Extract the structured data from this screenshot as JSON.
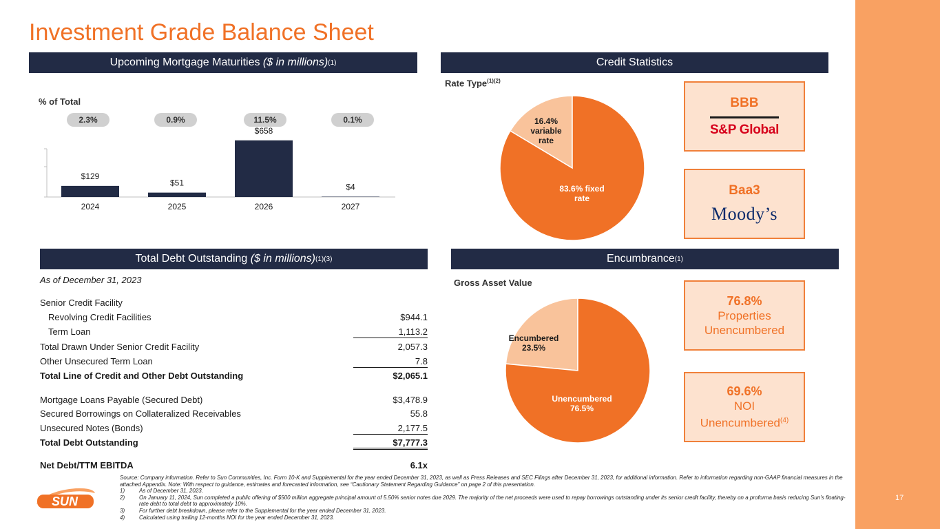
{
  "title": "Investment Grade Balance Sheet",
  "page_number": "17",
  "maturities": {
    "header": "Upcoming Mortgage Maturities ",
    "header_italic": "($ in millions)",
    "header_sup": "(1)",
    "pct_label": "% of Total",
    "pcts": [
      "2.3%",
      "0.9%",
      "11.5%",
      "0.1%"
    ]
  },
  "credit": {
    "header": "Credit Statistics",
    "rate_type_label": "Rate Type",
    "rate_type_sup": "(1)(2)",
    "variable_label": [
      "16.4%",
      "variable",
      "rate"
    ],
    "fixed_label": [
      "83.6% fixed",
      "rate"
    ],
    "sp_rating": "BBB",
    "sp_name": "S&P Global",
    "moodys_rating": "Baa3",
    "moodys_name": "Moody’s",
    "colors": {
      "fixed": "#f07126",
      "variable": "#f9c39b"
    }
  },
  "debt": {
    "header": "Total Debt Outstanding ",
    "header_italic": "($ in millions)",
    "header_sup": "(1)(3)",
    "as_of": "As of December 31, 2023",
    "rows": [
      {
        "label": "Senior Credit Facility",
        "value": ""
      },
      {
        "label": "Revolving Credit Facilities",
        "value": "$944.1"
      },
      {
        "label": "Term Loan",
        "value": "1,113.2"
      },
      {
        "label": "Total Drawn Under Senior Credit Facility",
        "value": "2,057.3"
      },
      {
        "label": "Other Unsecured Term Loan",
        "value": "7.8"
      },
      {
        "label": "Total Line of Credit and Other Debt Outstanding",
        "value": "$2,065.1"
      },
      {
        "label": "Mortgage Loans Payable (Secured Debt)",
        "value": "$3,478.9"
      },
      {
        "label": "Secured Borrowings on Collateralized Receivables",
        "value": "55.8"
      },
      {
        "label": "Unsecured Notes (Bonds)",
        "value": "2,177.5"
      },
      {
        "label": "Total Debt Outstanding",
        "value": "$7,777.3"
      },
      {
        "label": "Net Debt/TTM EBITDA",
        "value": "6.1x"
      }
    ]
  },
  "encumbrance": {
    "header": "Encumbrance",
    "header_sup": "(1)",
    "gav_label": "Gross Asset Value",
    "encumbered_label": [
      "Encumbered",
      "23.5%"
    ],
    "unencumbered_label": [
      "Unencumbered",
      "76.5%"
    ],
    "box1": {
      "big": "76.8%",
      "line1": "Properties",
      "line2": "Unencumbered"
    },
    "box2": {
      "big": "69.6%",
      "line1": "NOI",
      "line2": "Unencumbered",
      "sup": "(4)"
    },
    "colors": {
      "unencumbered": "#f07126",
      "encumbered": "#f9c39b"
    }
  },
  "footnotes": {
    "source": "Source: Company information. Refer to Sun Communities, Inc. Form 10-K and Supplemental for the year ended December 31, 2023, as well as Press Releases and SEC Filings after December 31, 2023, for additional information. Refer to information regarding non-GAAP financial measures in the attached Appendix. Note: With respect to guidance, estimates and forecasted information, see “Cautionary Statement Regarding Guidance” on page 2 of this presentation.",
    "notes": [
      {
        "num": "1)",
        "text": "As of December 31, 2023."
      },
      {
        "num": "2)",
        "text": "On January 11, 2024, Sun completed a public offering of $500 million aggregate principal amount of 5.50% senior notes due 2029. The majority of the net proceeds were used to repay borrowings outstanding under its senior credit facility, thereby on a proforma basis reducing Sun’s floating-rate debt to total debt to approximately 10%."
      },
      {
        "num": "3)",
        "text": "For further debt breakdown, please refer to the Supplemental for the year ended December 31, 2023."
      },
      {
        "num": "4)",
        "text": "Calculated using trailing 12-months NOI for the year ended December 31, 2023."
      }
    ]
  },
  "logo_text": "SUN",
  "chart_data": [
    {
      "type": "bar",
      "title": "Upcoming Mortgage Maturities ($ in millions)",
      "categories": [
        "2024",
        "2025",
        "2026",
        "2027"
      ],
      "values": [
        129,
        51,
        658,
        4
      ],
      "data_labels": [
        "$129",
        "$51",
        "$658",
        "$4"
      ],
      "ylim": [
        0,
        800
      ],
      "color": "#222b45"
    },
    {
      "type": "pie",
      "title": "Rate Type",
      "labels": [
        "variable rate",
        "fixed rate"
      ],
      "values": [
        16.4,
        83.6
      ]
    },
    {
      "type": "pie",
      "title": "Gross Asset Value",
      "labels": [
        "Encumbered",
        "Unencumbered"
      ],
      "values": [
        23.5,
        76.5
      ]
    }
  ]
}
